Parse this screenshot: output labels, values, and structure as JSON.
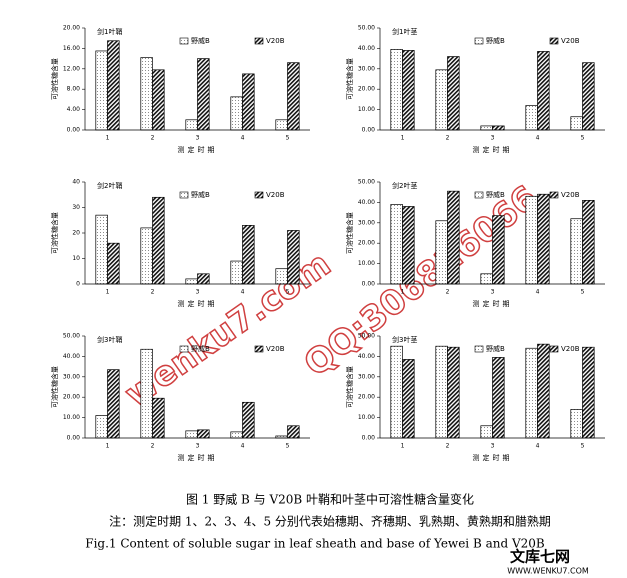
{
  "chart_data": [
    {
      "type": "bar",
      "title": "剑1叶鞘",
      "y_label": "可溶性糖含量",
      "x_label": "测定时期",
      "categories": [
        "1",
        "2",
        "3",
        "4",
        "5"
      ],
      "series": [
        {
          "name": "野威B",
          "values": [
            15.5,
            14.2,
            2.0,
            6.5,
            2.0
          ]
        },
        {
          "name": "V20B",
          "values": [
            17.5,
            11.8,
            14.0,
            11.0,
            13.2
          ]
        }
      ],
      "ylim": [
        0,
        20
      ],
      "yticks": [
        {
          "value": 0,
          "label": "0.00"
        },
        {
          "value": 4,
          "label": "4.00"
        },
        {
          "value": 8,
          "label": "8.00"
        },
        {
          "value": 12,
          "label": "12.00"
        },
        {
          "value": 16,
          "label": "16.00"
        },
        {
          "value": 20,
          "label": "20.00"
        }
      ]
    },
    {
      "type": "bar",
      "title": "剑1叶茎",
      "y_label": "可溶性糖含量",
      "x_label": "测定时期",
      "categories": [
        "1",
        "2",
        "3",
        "4",
        "5"
      ],
      "series": [
        {
          "name": "野威B",
          "values": [
            39.5,
            29.5,
            2.0,
            12.0,
            6.5
          ]
        },
        {
          "name": "V20B",
          "values": [
            39.0,
            36.0,
            2.0,
            38.5,
            33.0
          ]
        }
      ],
      "ylim": [
        0,
        50
      ],
      "yticks": [
        {
          "value": 0,
          "label": "0.00"
        },
        {
          "value": 10,
          "label": "10.00"
        },
        {
          "value": 20,
          "label": "20.00"
        },
        {
          "value": 30,
          "label": "30.00"
        },
        {
          "value": 40,
          "label": "40.00"
        },
        {
          "value": 50,
          "label": "50.00"
        }
      ]
    },
    {
      "type": "bar",
      "title": "剑2叶鞘",
      "y_label": "可溶性糖含量",
      "x_label": "测定时期",
      "categories": [
        "1",
        "2",
        "3",
        "4",
        "5"
      ],
      "series": [
        {
          "name": "野威B",
          "values": [
            27,
            22,
            2,
            9,
            6
          ]
        },
        {
          "name": "V20B",
          "values": [
            16,
            34,
            4,
            23,
            21
          ]
        }
      ],
      "ylim": [
        0,
        40
      ],
      "yticks": [
        0,
        10,
        20,
        30,
        40
      ]
    },
    {
      "type": "bar",
      "title": "剑2叶茎",
      "y_label": "可溶性糖含量",
      "x_label": "测定时期",
      "categories": [
        "1",
        "2",
        "3",
        "4",
        "5"
      ],
      "series": [
        {
          "name": "野威B",
          "values": [
            39,
            31,
            5,
            43,
            32
          ]
        },
        {
          "name": "V20B",
          "values": [
            38,
            45.5,
            33.5,
            44,
            41
          ]
        }
      ],
      "ylim": [
        0,
        50
      ],
      "yticks": [
        {
          "value": 0,
          "label": "0.00"
        },
        {
          "value": 10,
          "label": "10.00"
        },
        {
          "value": 20,
          "label": "20.00"
        },
        {
          "value": 30,
          "label": "30.00"
        },
        {
          "value": 40,
          "label": "40.00"
        },
        {
          "value": 50,
          "label": "50.00"
        }
      ]
    },
    {
      "type": "bar",
      "title": "剑3叶鞘",
      "y_label": "可溶性糖含量",
      "x_label": "测定时期",
      "categories": [
        "1",
        "2",
        "3",
        "4",
        "5"
      ],
      "series": [
        {
          "name": "野威B",
          "values": [
            11,
            43.5,
            3.5,
            3,
            1
          ]
        },
        {
          "name": "V20B",
          "values": [
            33.5,
            19.5,
            4,
            17.5,
            6
          ]
        }
      ],
      "ylim": [
        0,
        50
      ],
      "yticks": [
        {
          "value": 0,
          "label": "0.00"
        },
        {
          "value": 10,
          "label": "10.00"
        },
        {
          "value": 20,
          "label": "20.00"
        },
        {
          "value": 30,
          "label": "30.00"
        },
        {
          "value": 40,
          "label": "40.00"
        },
        {
          "value": 50,
          "label": "50.00"
        }
      ]
    },
    {
      "type": "bar",
      "title": "剑3叶茎",
      "y_label": "可溶性糖含量",
      "x_label": "测定时期",
      "categories": [
        "1",
        "2",
        "3",
        "4",
        "5"
      ],
      "series": [
        {
          "name": "野威B",
          "values": [
            45,
            45,
            6,
            44,
            14
          ]
        },
        {
          "name": "V20B",
          "values": [
            38.5,
            44.5,
            39.5,
            46,
            44.5
          ]
        }
      ],
      "ylim": [
        0,
        50
      ],
      "yticks": [
        {
          "value": 0,
          "label": "0.00"
        },
        {
          "value": 10,
          "label": "10.00"
        },
        {
          "value": 20,
          "label": "20.00"
        },
        {
          "value": 30,
          "label": "30.00"
        },
        {
          "value": 40,
          "label": "40.00"
        },
        {
          "value": 50,
          "label": "50.00"
        }
      ]
    }
  ],
  "caption": [
    "图 1 野威 B 与 V20B 叶鞘和叶茎中可溶性糖含量变化",
    "注：测定时期 1、2、3、4、5 分别代表始穗期、齐穗期、乳熟期、黄熟期和腊熟期",
    "Fig.1 Content of soluble sugar in leaf sheath and base of Yewei B and V20B"
  ],
  "watermark": [
    "wenku7.com",
    "QQ:306826066"
  ],
  "logo": [
    "文库七网",
    "WWW.WENKU7.COM"
  ]
}
